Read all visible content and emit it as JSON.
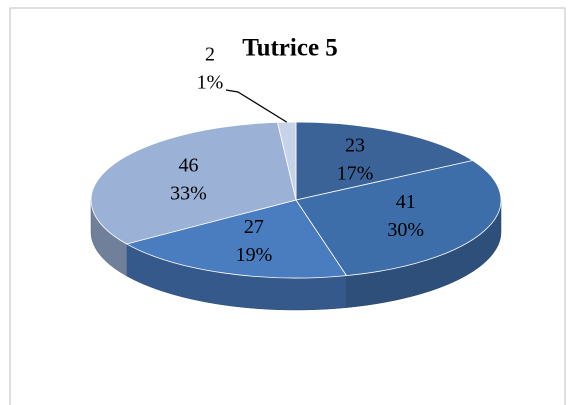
{
  "chart_data": {
    "type": "pie",
    "title": "Tutrice 5",
    "categories": [
      null,
      null,
      null,
      null,
      null
    ],
    "values": [
      23,
      41,
      27,
      46,
      2
    ],
    "percent_labels": [
      "17%",
      "30%",
      "19%",
      "33%",
      "1%"
    ],
    "colors": [
      "#3b6398",
      "#3e6ea9",
      "#4a7cc0",
      "#9bb1d6",
      "#c6d3e8"
    ],
    "three_d": true
  }
}
